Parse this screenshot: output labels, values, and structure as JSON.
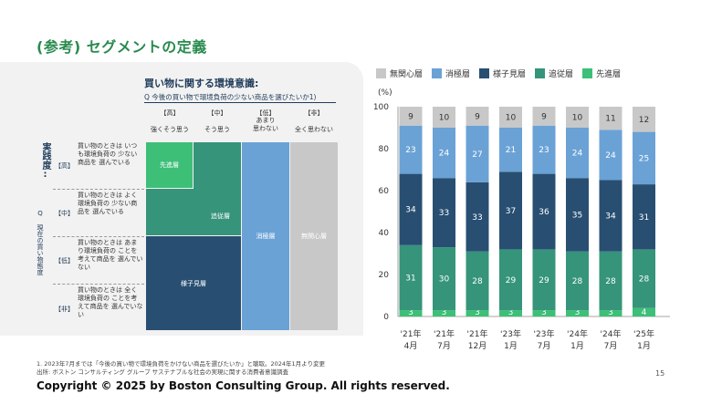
{
  "page_title": "(参考) セグメントの定義",
  "matrix": {
    "question_title": "買い物に関する環境意識:",
    "question_sub": "Q 今後の買い物で環境負荷の少ない商品を選びたいか1)",
    "columns": [
      {
        "tag": "【高】",
        "desc": "強くそう思う"
      },
      {
        "tag": "【中】",
        "desc": "そう思う"
      },
      {
        "tag": "【低】",
        "desc": "あまり\n思わない"
      },
      {
        "tag": "【非】",
        "desc": "全く思わない"
      }
    ],
    "vertical_axis": "実践度:",
    "vertical_sub": "Q 現在の買い物態度",
    "rows": [
      {
        "tag": "【高】",
        "desc": "買い物のときは いつも環境負荷の 少ない商品を 選んでいる"
      },
      {
        "tag": "【中】",
        "desc": "買い物のときは よく環境負荷の 少ない商品を 選んでいる"
      },
      {
        "tag": "【低】",
        "desc": "買い物のときは あまり環境負荷の ことを考えて商品を 選んでいない"
      },
      {
        "tag": "【非】",
        "desc": "買い物のときは 全く環境負荷の ことを考えて商品を 選んでいない"
      }
    ],
    "segments": {
      "senshin": "先進層",
      "tsuiju": "追従層",
      "yosumi": "様子見層",
      "shokyoku": "消極層",
      "mukanshin": "無関心層"
    }
  },
  "colors": {
    "mukanshin": "#c8c8c8",
    "shokyoku": "#6aa2d6",
    "yosumi": "#284f72",
    "tsuiju": "#35947a",
    "senshin": "#3dbf78"
  },
  "chart_data": {
    "type": "bar",
    "stacked": true,
    "ylabel": "(%)",
    "ylim": [
      0,
      100
    ],
    "yticks": [
      0,
      20,
      40,
      60,
      80,
      100
    ],
    "categories": [
      "'21年\n4月",
      "'21年\n7月",
      "'21年\n12月",
      "'23年\n1月",
      "'23年\n7月",
      "'24年\n1月",
      "'24年\n7月",
      "'25年\n1月"
    ],
    "legend": [
      "無関心層",
      "消極層",
      "様子見層",
      "追従層",
      "先進層"
    ],
    "series": [
      {
        "name": "先進層",
        "key": "senshin",
        "values": [
          3,
          3,
          3,
          3,
          3,
          3,
          3,
          4
        ]
      },
      {
        "name": "追従層",
        "key": "tsuiju",
        "values": [
          31,
          30,
          28,
          29,
          29,
          28,
          28,
          28
        ]
      },
      {
        "name": "様子見層",
        "key": "yosumi",
        "values": [
          34,
          33,
          33,
          37,
          36,
          35,
          34,
          31
        ]
      },
      {
        "name": "消極層",
        "key": "shokyoku",
        "values": [
          23,
          24,
          27,
          21,
          23,
          24,
          24,
          25
        ]
      },
      {
        "name": "無関心層",
        "key": "mukanshin",
        "values": [
          9,
          10,
          9,
          10,
          9,
          10,
          11,
          12
        ]
      }
    ]
  },
  "footnote_1": "1. 2023年7月までは「今後の買い物で環境負荷をかけない商品を選びたいか」と聴取。2024年1月より変更",
  "footnote_2": "出所: ボストン コンサルティング グループ サステナブルな社会の実現に関する消費者意識調査",
  "copyright": "Copyright © 2025 by Boston Consulting Group. All rights reserved.",
  "page_number": "15"
}
